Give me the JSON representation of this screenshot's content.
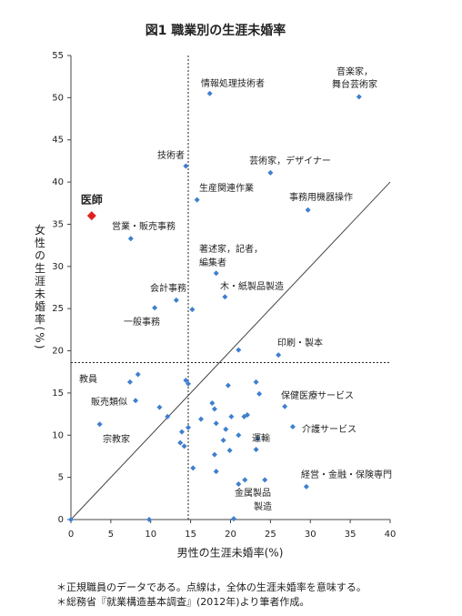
{
  "chart_data": {
    "type": "scatter",
    "title": "図1  職業別の生涯未婚率",
    "xlabel": "男性の生涯未婚率(%)",
    "ylabel": "女性の生涯未婚率(%)",
    "xlim": [
      0,
      40
    ],
    "ylim": [
      0,
      55
    ],
    "xticks": [
      0,
      5,
      10,
      15,
      20,
      25,
      30,
      35,
      40
    ],
    "yticks": [
      0,
      5,
      10,
      15,
      20,
      25,
      30,
      35,
      40,
      45,
      50,
      55
    ],
    "reference_lines": {
      "x": 14.7,
      "y": 18.6
    },
    "series": [
      {
        "color": "#3f7fcf",
        "marker": "diamond",
        "x": [
          17.4,
          36.1,
          14.4,
          25.0,
          15.8,
          29.7,
          7.5,
          18.2,
          19.3,
          13.2,
          10.5,
          15.2,
          26.0,
          21.0,
          8.4,
          7.4,
          14.4,
          14.7,
          19.7,
          23.2,
          23.6,
          26.8,
          8.1,
          11.1,
          17.7,
          18.0,
          12.1,
          16.3,
          20.1,
          21.7,
          22.1,
          18.2,
          3.6,
          13.9,
          19.4,
          14.7,
          27.8,
          21.0,
          19.1,
          23.4,
          13.7,
          14.2,
          19.9,
          23.2,
          18.0,
          15.3,
          18.2,
          21.8,
          21.0,
          24.3,
          29.5,
          9.8,
          20.4,
          0
        ],
        "y": [
          50.5,
          50.1,
          41.9,
          41.1,
          37.9,
          36.7,
          33.3,
          29.2,
          26.4,
          26.0,
          25.1,
          24.9,
          19.5,
          20.1,
          17.2,
          16.3,
          16.5,
          16.1,
          15.9,
          16.3,
          14.9,
          13.4,
          14.1,
          13.3,
          13.8,
          13.1,
          12.2,
          11.9,
          12.2,
          12.2,
          12.4,
          11.4,
          11.3,
          10.4,
          10.7,
          10.9,
          11.0,
          10.0,
          9.4,
          9.6,
          9.1,
          8.7,
          8.2,
          8.3,
          7.7,
          6.1,
          5.7,
          4.7,
          4.2,
          4.7,
          3.9,
          0,
          0.1,
          0
        ]
      },
      {
        "name": "医師",
        "color": "#e02020",
        "marker": "diamond",
        "x": [
          2.6
        ],
        "y": [
          36.0
        ]
      }
    ],
    "annotations": [
      "情報処理技術者",
      "音楽家，",
      "舞台芸術家",
      "技術者",
      "芸術家，デザイナー",
      "生産関連作業",
      "事務用機器操作",
      "営業・販売事務",
      "著述家，記者，",
      "編集者",
      "木・紙製品製造",
      "会計事務",
      "一般事務",
      "印刷・製本",
      "教員",
      "保健医療サービス",
      "販売類似",
      "宗教家",
      "介護サービス",
      "運輸",
      "経営・金融・保険専門",
      "金属製品",
      "製造"
    ],
    "notes": [
      "＊正規職員のデータである。点線は，全体の生涯未婚率を意味する。",
      "＊総務省『就業構造基本調査』(2012年)より筆者作成。"
    ]
  }
}
